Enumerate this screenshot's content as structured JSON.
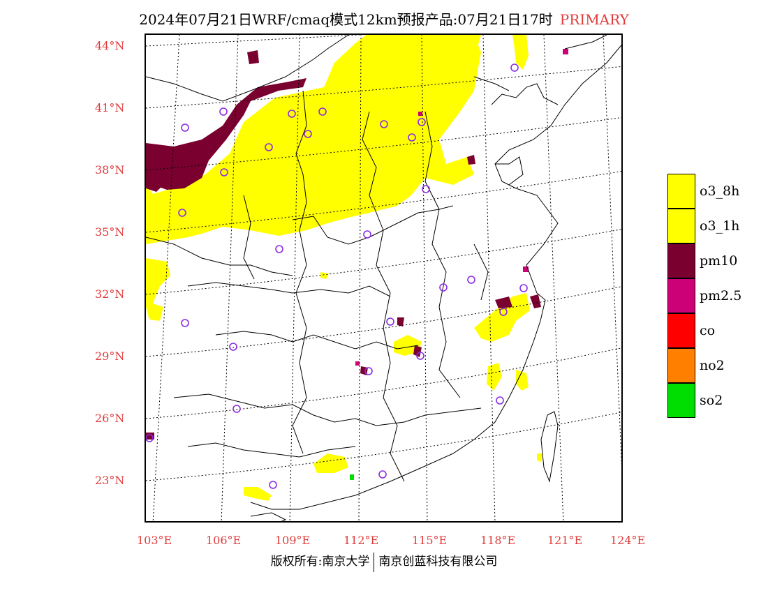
{
  "title": {
    "text": "2024年07月21日WRF/cmaq模式12km预报产品:07月21日17时",
    "primary": "PRIMARY"
  },
  "lat_labels": [
    "44°N",
    "41°N",
    "38°N",
    "35°N",
    "32°N",
    "29°N",
    "26°N",
    "23°N"
  ],
  "lon_labels": [
    "103°E",
    "106°E",
    "109°E",
    "112°E",
    "115°E",
    "118°E",
    "121°E",
    "124°E"
  ],
  "legend": [
    {
      "label": "o3_8h",
      "color": "#ffff00"
    },
    {
      "label": "o3_1h",
      "color": "#ffff00"
    },
    {
      "label": "pm10",
      "color": "#7a0030"
    },
    {
      "label": "pm2.5",
      "color": "#cc0077"
    },
    {
      "label": "co",
      "color": "#ff0000"
    },
    {
      "label": "no2",
      "color": "#ff8000"
    },
    {
      "label": "so2",
      "color": "#00dd00"
    }
  ],
  "footer": {
    "left": "版权所有:南京大学",
    "right": "南京创蓝科技有限公司"
  },
  "colors": {
    "axis_label": "#e03a3a",
    "station_circle": "#8a2be2"
  }
}
